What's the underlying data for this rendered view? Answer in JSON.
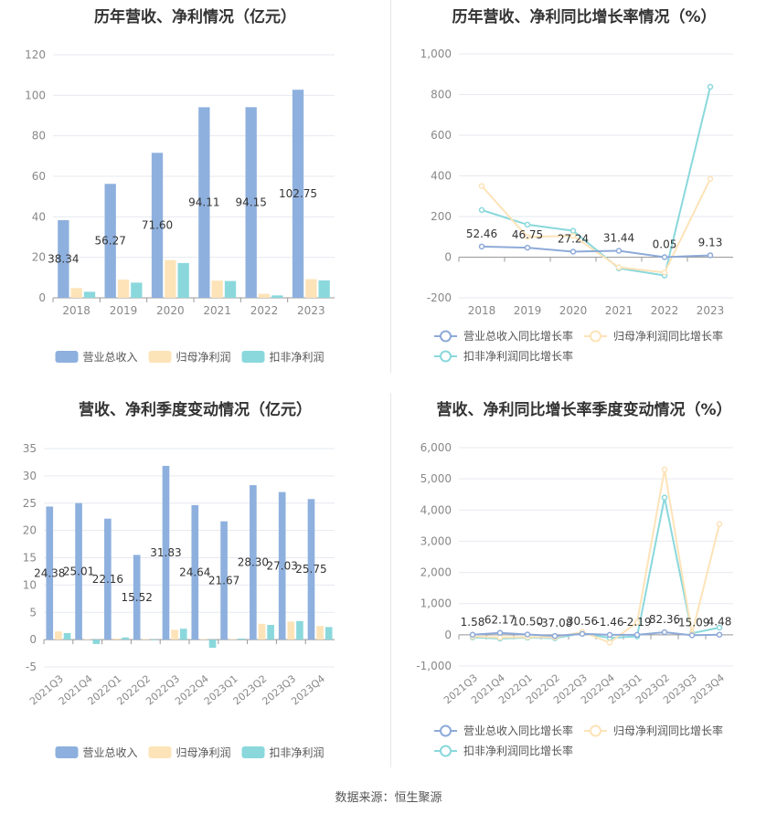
{
  "source": "数据来源：恒生聚源",
  "colors": {
    "revenue": "#8eb0de",
    "net": "#fde3b8",
    "deduct": "#8ad8dc"
  },
  "chart_data": [
    {
      "id": "annual_amount",
      "type": "bar",
      "title": "历年营收、净利情况（亿元）",
      "categories": [
        "2018",
        "2019",
        "2020",
        "2021",
        "2022",
        "2023"
      ],
      "ylim": [
        0,
        120
      ],
      "yticks": [
        0,
        20,
        40,
        60,
        80,
        100,
        120
      ],
      "ytick_labels": [
        "0",
        "20",
        "40",
        "60",
        "80",
        "100",
        "120"
      ],
      "series": [
        {
          "name": "营业总收入",
          "values": [
            38.34,
            56.27,
            71.6,
            94.11,
            94.15,
            102.75
          ],
          "labels": [
            "38.34",
            "56.27",
            "71.60",
            "94.11",
            "94.15",
            "102.75"
          ],
          "color": "#8eb0de"
        },
        {
          "name": "归母净利润",
          "values": [
            4.8,
            9.0,
            18.6,
            8.5,
            2.0,
            9.2
          ],
          "color": "#fde3b8"
        },
        {
          "name": "扣非净利润",
          "values": [
            3.0,
            7.5,
            17.2,
            8.3,
            1.2,
            8.6
          ],
          "color": "#8ad8dc"
        }
      ],
      "legend": "bottom"
    },
    {
      "id": "annual_growth",
      "type": "line",
      "title": "历年营收、净利同比增长率情况（%）",
      "categories": [
        "2018",
        "2019",
        "2020",
        "2021",
        "2022",
        "2023"
      ],
      "ylim": [
        -200,
        1000
      ],
      "yticks": [
        -200,
        0,
        200,
        400,
        600,
        800,
        1000
      ],
      "ytick_labels": [
        "-200",
        "0",
        "200",
        "400",
        "600",
        "800",
        "1,000"
      ],
      "series": [
        {
          "name": "营业总收入同比增长率",
          "values": [
            52.46,
            46.75,
            27.24,
            31.44,
            0.05,
            9.13
          ],
          "labels": [
            "52.46",
            "46.75",
            "27.24",
            "31.44",
            "0.05",
            "9.13"
          ],
          "color": "#8eaad8"
        },
        {
          "name": "归母净利润同比增长率",
          "values": [
            350,
            100,
            105,
            -50,
            -75,
            385
          ],
          "color": "#fde3b8"
        },
        {
          "name": "扣非净利润同比增长率",
          "values": [
            232,
            160,
            130,
            -55,
            -90,
            838
          ],
          "color": "#8ad8dc"
        }
      ],
      "legend": "bottom"
    },
    {
      "id": "quarter_amount",
      "type": "bar",
      "title": "营收、净利季度变动情况（亿元）",
      "categories": [
        "2021Q3",
        "2021Q4",
        "2022Q1",
        "2022Q2",
        "2022Q3",
        "2022Q4",
        "2023Q1",
        "2023Q2",
        "2023Q3",
        "2023Q4"
      ],
      "ylim": [
        -5,
        35
      ],
      "yticks": [
        -5,
        0,
        5,
        10,
        15,
        20,
        25,
        30,
        35
      ],
      "ytick_labels": [
        "-5",
        "0",
        "5",
        "10",
        "15",
        "20",
        "25",
        "30",
        "35"
      ],
      "series": [
        {
          "name": "营业总收入",
          "values": [
            24.38,
            25.01,
            22.16,
            15.52,
            31.83,
            24.64,
            21.67,
            28.3,
            27.03,
            25.75
          ],
          "labels": [
            "24.38",
            "25.01",
            "22.16",
            "15.52",
            "31.83",
            "24.64",
            "21.67",
            "28.30",
            "27.03",
            "25.75"
          ],
          "color": "#8eb0de"
        },
        {
          "name": "归母净利润",
          "values": [
            1.5,
            0.1,
            0.2,
            0.1,
            1.8,
            0.1,
            0.1,
            2.9,
            3.3,
            2.5
          ],
          "color": "#fde3b8"
        },
        {
          "name": "扣非净利润",
          "values": [
            1.2,
            -0.8,
            0.4,
            -0.1,
            2.0,
            -1.5,
            0.2,
            2.7,
            3.4,
            2.3
          ],
          "color": "#8ad8dc"
        }
      ],
      "legend": "bottom"
    },
    {
      "id": "quarter_growth",
      "type": "line",
      "title": "营收、净利同比增长率季度变动情况（%）",
      "categories": [
        "2021Q3",
        "2021Q4",
        "2022Q1",
        "2022Q2",
        "2022Q3",
        "2022Q4",
        "2023Q1",
        "2023Q2",
        "2023Q3",
        "2023Q4"
      ],
      "ylim": [
        -1000,
        6000
      ],
      "yticks": [
        -1000,
        0,
        1000,
        2000,
        3000,
        4000,
        5000,
        6000
      ],
      "ytick_labels": [
        "-1,000",
        "0",
        "1,000",
        "2,000",
        "3,000",
        "4,000",
        "5,000",
        "6,000"
      ],
      "series": [
        {
          "name": "营业总收入同比增长率",
          "values": [
            1.58,
            62.17,
            10.5,
            -37.08,
            30.56,
            -1.46,
            -2.19,
            82.36,
            -15.09,
            4.48
          ],
          "labels": [
            "1.58",
            "62.17",
            "10.50",
            "-37.08",
            "30.56",
            "-1.46",
            "-2.19",
            "82.36",
            "-15.09",
            "4.48"
          ],
          "color": "#8eaad8"
        },
        {
          "name": "归母净利润同比增长率",
          "values": [
            -50,
            -90,
            -70,
            -80,
            90,
            -250,
            400,
            5300,
            30,
            3550
          ],
          "color": "#fde3b8"
        },
        {
          "name": "扣非净利润同比增长率",
          "values": [
            -80,
            -120,
            -90,
            -110,
            50,
            -100,
            -50,
            4400,
            50,
            230
          ],
          "color": "#8ad8dc"
        }
      ],
      "legend": "bottom"
    }
  ]
}
